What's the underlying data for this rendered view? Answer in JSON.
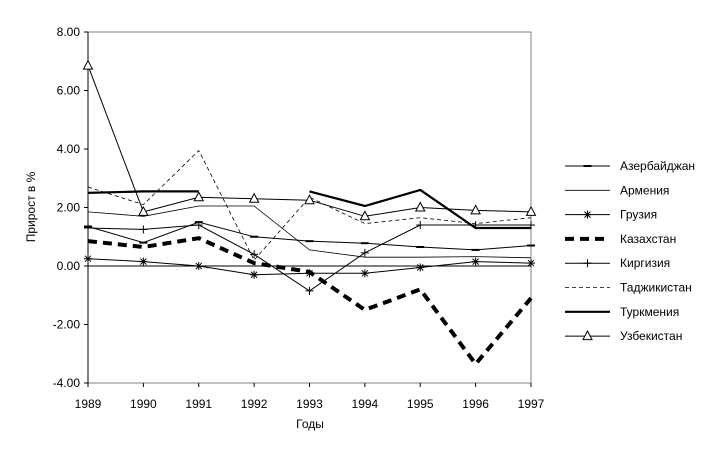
{
  "chart_data": {
    "type": "line",
    "xlabel": "Годы",
    "ylabel": "Прирост в %",
    "x": [
      "1989",
      "1990",
      "1991",
      "1992",
      "1993",
      "1994",
      "1995",
      "1996",
      "1997"
    ],
    "ylim": [
      -4,
      8
    ],
    "yticks": [
      "8.00",
      "6.00",
      "4.00",
      "2.00",
      "0.00",
      "-2.00",
      "-4.00"
    ],
    "grid": false,
    "legend_position": "right",
    "series": [
      {
        "name": "Азербайджан",
        "style": "thin-dash",
        "values": [
          1.35,
          0.8,
          1.5,
          1.0,
          0.85,
          0.78,
          0.65,
          0.55,
          0.7
        ]
      },
      {
        "name": "Армения",
        "style": "thin",
        "values": [
          1.85,
          1.7,
          2.05,
          2.05,
          0.55,
          0.3,
          0.3,
          0.32,
          0.28
        ]
      },
      {
        "name": "Грузия",
        "style": "star",
        "values": [
          0.25,
          0.15,
          0.0,
          -0.3,
          -0.25,
          -0.25,
          -0.05,
          0.15,
          0.1
        ]
      },
      {
        "name": "Казахстан",
        "style": "thick-dash",
        "values": [
          0.85,
          0.65,
          0.95,
          0.1,
          -0.2,
          -1.5,
          -0.8,
          -3.35,
          -1.1
        ]
      },
      {
        "name": "Киргизия",
        "style": "plus",
        "values": [
          1.3,
          1.25,
          1.4,
          0.4,
          -0.85,
          0.45,
          1.4,
          1.4,
          1.4
        ]
      },
      {
        "name": "Таджикистан",
        "style": "dashed",
        "values": [
          2.7,
          2.1,
          3.95,
          0.2,
          2.35,
          1.45,
          1.65,
          1.45,
          1.65
        ]
      },
      {
        "name": "Туркмения",
        "style": "thick",
        "values": [
          2.5,
          2.55,
          2.55,
          null,
          2.55,
          2.05,
          2.6,
          1.3,
          1.3
        ]
      },
      {
        "name": "Узбекистан",
        "style": "triangle",
        "values": [
          6.85,
          1.85,
          2.35,
          2.3,
          2.25,
          1.7,
          2.0,
          1.9,
          1.85
        ]
      }
    ]
  }
}
